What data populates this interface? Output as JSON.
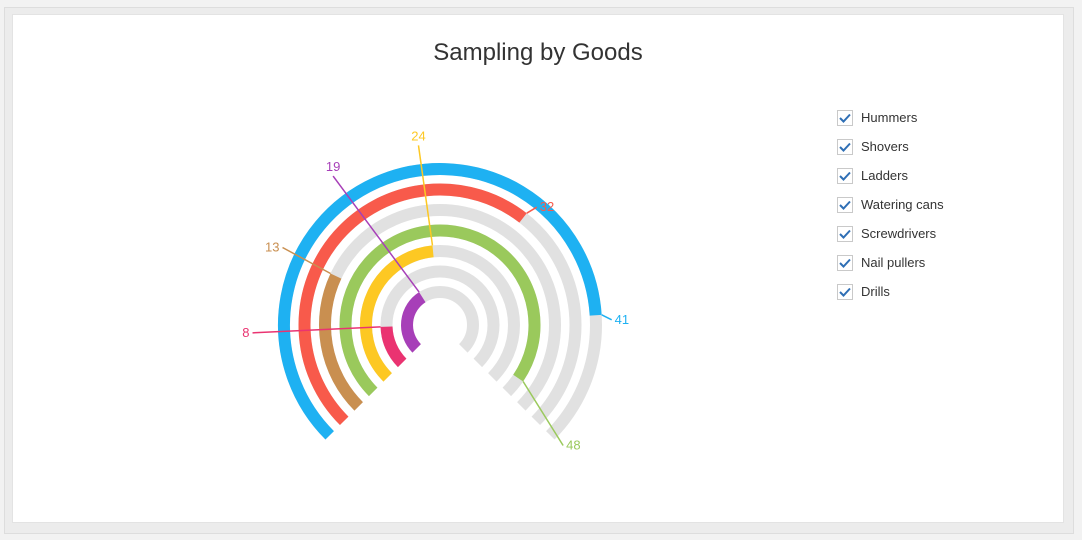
{
  "colors": {
    "track": "#e1e1e1",
    "check": "#2f6fb5"
  },
  "chart_data": {
    "type": "radial-bar",
    "title": "Sampling by Goods",
    "range": [
      0,
      50
    ],
    "series": [
      {
        "name": "Hummers",
        "value": 41,
        "color": "#1eb1f2"
      },
      {
        "name": "Shovers",
        "value": 32,
        "color": "#f85a4b"
      },
      {
        "name": "Ladders",
        "value": 13,
        "color": "#c98f50"
      },
      {
        "name": "Watering cans",
        "value": 48,
        "color": "#9ac95c"
      },
      {
        "name": "Screwdrivers",
        "value": 24,
        "color": "#fdc823"
      },
      {
        "name": "Nail pullers",
        "value": 8,
        "color": "#ea3371"
      },
      {
        "name": "Drills",
        "value": 19,
        "color": "#a73fb8"
      }
    ],
    "legend_position": "right"
  }
}
